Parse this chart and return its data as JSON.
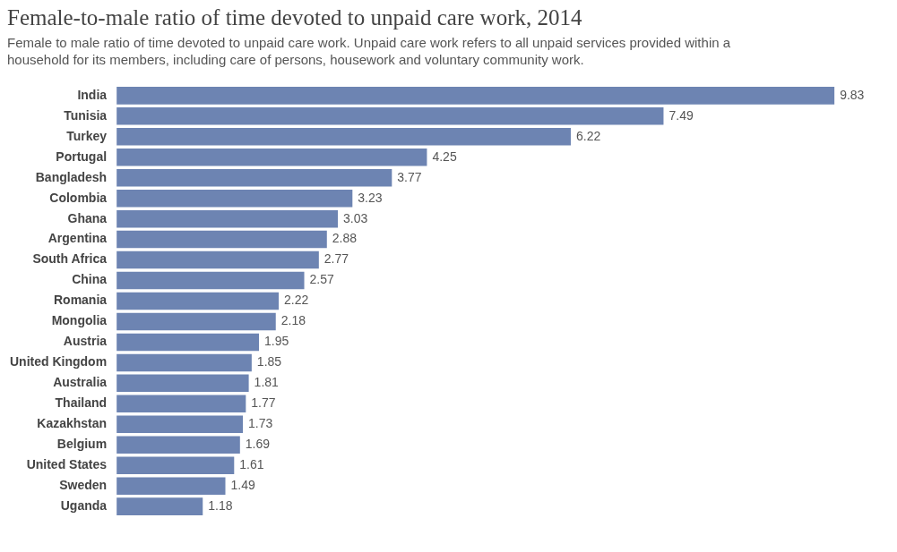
{
  "chart_data": {
    "type": "bar",
    "orientation": "horizontal",
    "title": "Female-to-male ratio of time devoted to unpaid care work, 2014",
    "subtitle": "Female to male ratio of time devoted to unpaid care work. Unpaid care work refers to all unpaid services provided within a household for its members, including care of persons, housework and voluntary community work.",
    "categories": [
      "India",
      "Tunisia",
      "Turkey",
      "Portugal",
      "Bangladesh",
      "Colombia",
      "Ghana",
      "Argentina",
      "South Africa",
      "China",
      "Romania",
      "Mongolia",
      "Austria",
      "United Kingdom",
      "Australia",
      "Thailand",
      "Kazakhstan",
      "Belgium",
      "United States",
      "Sweden",
      "Uganda"
    ],
    "values": [
      9.83,
      7.49,
      6.22,
      4.25,
      3.77,
      3.23,
      3.03,
      2.88,
      2.77,
      2.57,
      2.22,
      2.18,
      1.95,
      1.85,
      1.81,
      1.77,
      1.73,
      1.69,
      1.61,
      1.49,
      1.18
    ],
    "color": "#6d84b2",
    "data_labels": true,
    "legend": false
  }
}
